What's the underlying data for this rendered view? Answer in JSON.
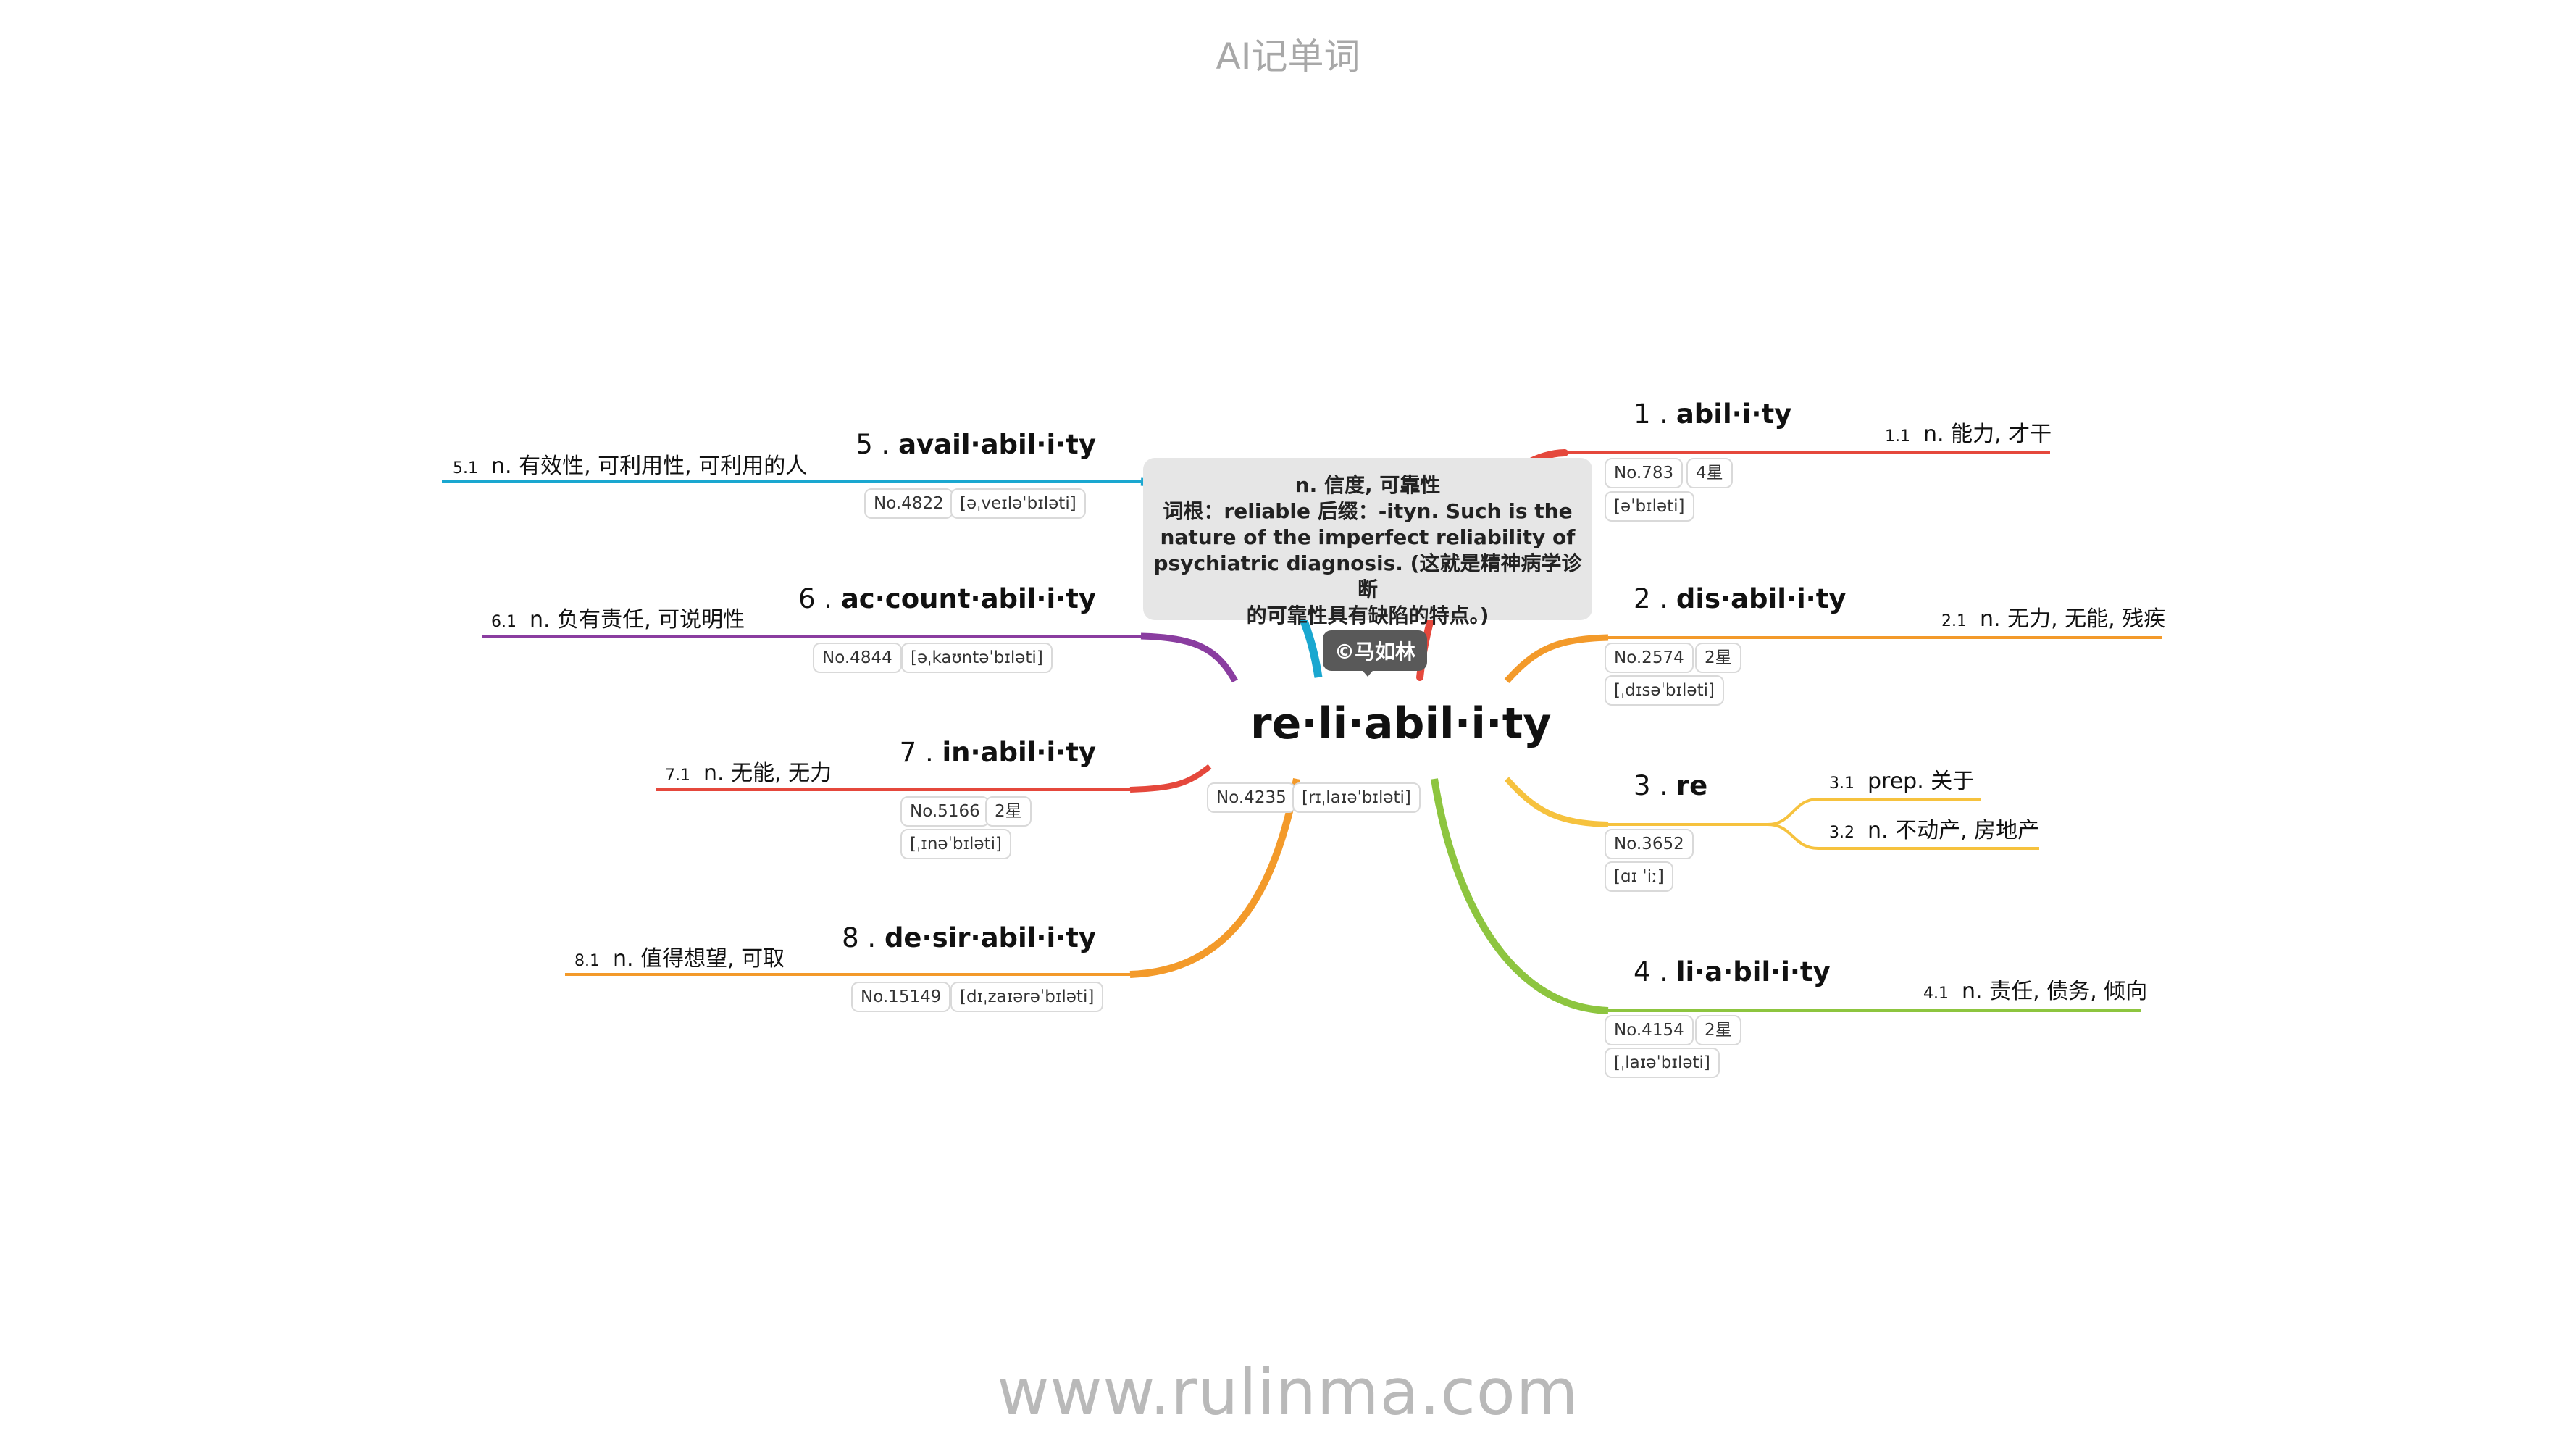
{
  "header": {
    "title": "AI记单词"
  },
  "footer": {
    "url": "www.rulinma.com"
  },
  "center": {
    "word": "re·li·abil·i·ty",
    "number": "No.4235",
    "phonetic": "[rɪˌlaɪəˈbɪləti]",
    "callout_lines": [
      "n. 信度, 可靠性",
      "词根：reliable 后缀：-ityn. Such is the",
      "nature of the imperfect reliability of",
      "psychiatric diagnosis. (这就是精神病学诊断",
      "的可靠性具有缺陷的特点。)"
    ],
    "badge": "©马如林"
  },
  "colors": {
    "branch1": "#e5483c",
    "branch2": "#f39a2a",
    "branch3": "#f6c23e",
    "branch4": "#8dc53f",
    "branch5": "#1aa7d0",
    "branch6": "#8a3da0",
    "branch7": "#e5483c",
    "branch8": "#f39a2a"
  },
  "branches": [
    {
      "num": "1 .",
      "word": "abil·i·ty",
      "no": "No.783",
      "stars": "4星",
      "phonetic": "[əˈbɪləti]",
      "defs": [
        {
          "n": "1.1",
          "text": "n. 能力, 才干"
        }
      ]
    },
    {
      "num": "2 .",
      "word": "dis·abil·i·ty",
      "no": "No.2574",
      "stars": "2星",
      "phonetic": "[ˌdɪsəˈbɪləti]",
      "defs": [
        {
          "n": "2.1",
          "text": "n. 无力, 无能, 残疾"
        }
      ]
    },
    {
      "num": "3 .",
      "word": "re",
      "no": "No.3652",
      "phonetic": "[ɑɪ ˈiː]",
      "defs": [
        {
          "n": "3.1",
          "text": "prep. 关于"
        },
        {
          "n": "3.2",
          "text": "n. 不动产, 房地产"
        }
      ]
    },
    {
      "num": "4 .",
      "word": "li·a·bil·i·ty",
      "no": "No.4154",
      "stars": "2星",
      "phonetic": "[ˌlaɪəˈbɪləti]",
      "defs": [
        {
          "n": "4.1",
          "text": "n. 责任, 债务, 倾向"
        }
      ]
    },
    {
      "num": "5 .",
      "word": "avail·abil·i·ty",
      "no": "No.4822",
      "phonetic": "[əˌveɪləˈbɪləti]",
      "defs": [
        {
          "n": "5.1",
          "text": "n. 有效性, 可利用性, 可利用的人"
        }
      ]
    },
    {
      "num": "6 .",
      "word": "ac·count·abil·i·ty",
      "no": "No.4844",
      "phonetic": "[əˌkaʊntəˈbɪləti]",
      "defs": [
        {
          "n": "6.1",
          "text": "n. 负有责任, 可说明性"
        }
      ]
    },
    {
      "num": "7 .",
      "word": "in·abil·i·ty",
      "no": "No.5166",
      "stars": "2星",
      "phonetic": "[ˌɪnəˈbɪləti]",
      "defs": [
        {
          "n": "7.1",
          "text": "n. 无能, 无力"
        }
      ]
    },
    {
      "num": "8 .",
      "word": "de·sir·abil·i·ty",
      "no": "No.15149",
      "phonetic": "[dɪˌzaɪərəˈbɪləti]",
      "defs": [
        {
          "n": "8.1",
          "text": "n. 值得想望, 可取"
        }
      ]
    }
  ]
}
